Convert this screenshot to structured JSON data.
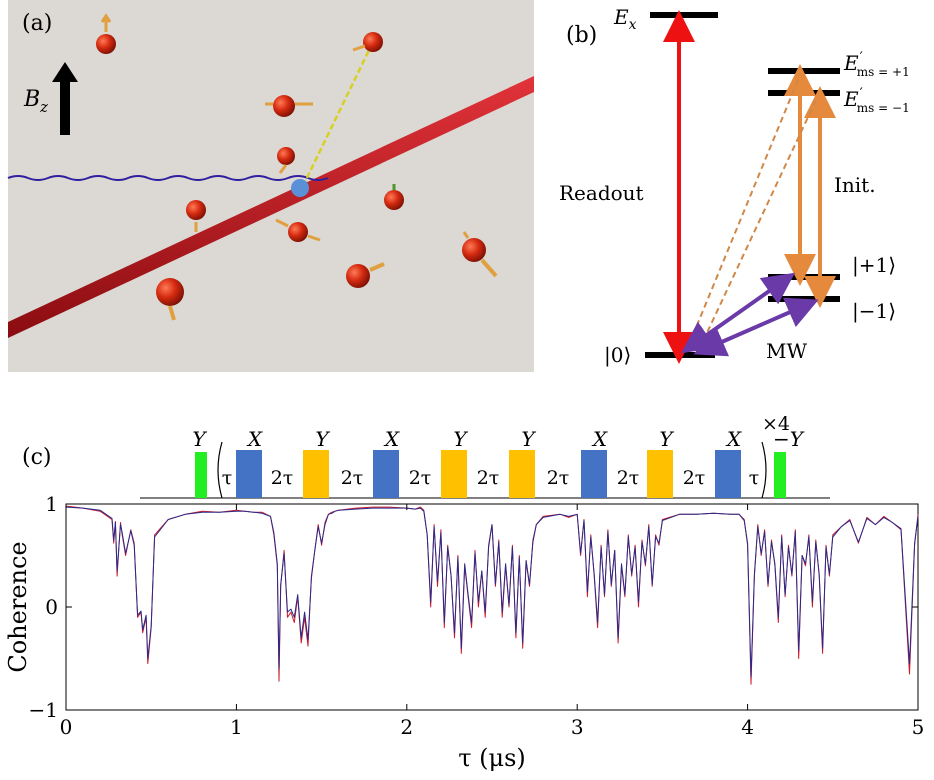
{
  "panel_a": {
    "label": "(a)",
    "field_label": "B",
    "field_sub": "z",
    "background": "#dcd8d4",
    "spin_color": "#d42a10",
    "arrow_color": "#e0a040",
    "wire_color": "#c8141c",
    "center_color": "#5a90d8",
    "link_blue": "#3020a0",
    "link_yellow": "#d8d020"
  },
  "panel_b": {
    "label": "(b)",
    "ex_label": "E",
    "ex_sub": "x",
    "ep1_label": "E",
    "ep1_sub": "ms = +1",
    "em1_label": "E",
    "em1_sub": "ms = −1",
    "readout": "Readout",
    "init": "Init.",
    "ket_p1": "|+1⟩",
    "ket_m1": "|−1⟩",
    "ket_0": "|0⟩",
    "mw": "MW",
    "colors": {
      "readout": "#ee1111",
      "init": "#e58a3c",
      "mw": "#6a3aa8"
    }
  },
  "panel_c": {
    "label": "(c)",
    "pulses": [
      "Y",
      "X",
      "Y",
      "X",
      "Y",
      "Y",
      "X",
      "Y",
      "X",
      "−Y"
    ],
    "spacers": [
      "τ",
      "2τ",
      "2τ",
      "2τ",
      "2τ",
      "2τ",
      "2τ",
      "2τ",
      "τ"
    ],
    "repeat": "×4",
    "colors": {
      "X": "#4472c4",
      "Y": "#ffc000",
      "edge": "#22ee22"
    }
  },
  "chart_data": {
    "type": "line",
    "xlabel": "τ (μs)",
    "ylabel": "Coherence",
    "xlim": [
      0,
      5
    ],
    "ylim": [
      -1,
      1
    ],
    "xticks": [
      "0",
      "1",
      "2",
      "3",
      "4",
      "5"
    ],
    "yticks": [
      "1",
      "0",
      "−1"
    ],
    "grid": false,
    "series_colors": [
      "#cc1a2a",
      "#2a2a8a"
    ],
    "x": [
      0,
      0.1,
      0.2,
      0.27,
      0.28,
      0.29,
      0.3,
      0.32,
      0.33,
      0.35,
      0.38,
      0.4,
      0.42,
      0.44,
      0.45,
      0.47,
      0.48,
      0.5,
      0.52,
      0.6,
      0.7,
      0.8,
      0.9,
      1.0,
      1.05,
      1.1,
      1.15,
      1.2,
      1.22,
      1.24,
      1.25,
      1.26,
      1.28,
      1.3,
      1.32,
      1.34,
      1.36,
      1.38,
      1.4,
      1.42,
      1.44,
      1.46,
      1.48,
      1.5,
      1.52,
      1.54,
      1.56,
      1.58,
      1.6,
      1.7,
      1.8,
      1.9,
      2.0,
      2.05,
      2.08,
      2.1,
      2.12,
      2.14,
      2.16,
      2.18,
      2.2,
      2.22,
      2.24,
      2.26,
      2.28,
      2.3,
      2.32,
      2.34,
      2.36,
      2.38,
      2.4,
      2.42,
      2.44,
      2.46,
      2.48,
      2.5,
      2.52,
      2.54,
      2.56,
      2.58,
      2.6,
      2.62,
      2.64,
      2.66,
      2.68,
      2.7,
      2.72,
      2.74,
      2.76,
      2.8,
      2.9,
      2.95,
      3.0,
      3.02,
      3.04,
      3.06,
      3.08,
      3.1,
      3.12,
      3.14,
      3.16,
      3.18,
      3.2,
      3.22,
      3.24,
      3.26,
      3.28,
      3.3,
      3.32,
      3.34,
      3.36,
      3.38,
      3.4,
      3.42,
      3.44,
      3.46,
      3.48,
      3.5,
      3.6,
      3.7,
      3.8,
      3.9,
      3.95,
      3.98,
      4.0,
      4.02,
      4.04,
      4.06,
      4.08,
      4.1,
      4.12,
      4.14,
      4.16,
      4.18,
      4.2,
      4.22,
      4.24,
      4.26,
      4.28,
      4.3,
      4.32,
      4.34,
      4.36,
      4.38,
      4.4,
      4.42,
      4.44,
      4.46,
      4.48,
      4.5,
      4.55,
      4.6,
      4.65,
      4.7,
      4.75,
      4.8,
      4.85,
      4.9,
      4.95,
      4.98,
      5.0
    ],
    "series": [
      {
        "values": [
          0.98,
          0.96,
          0.93,
          0.85,
          0.62,
          0.83,
          0.3,
          0.82,
          0.7,
          0.5,
          0.75,
          0.62,
          -0.1,
          -0.05,
          -0.25,
          -0.1,
          -0.55,
          -0.2,
          0.7,
          0.85,
          0.9,
          0.93,
          0.92,
          0.94,
          0.93,
          0.92,
          0.92,
          0.88,
          0.7,
          0.4,
          -0.72,
          0.2,
          0.55,
          -0.1,
          -0.05,
          -0.15,
          0.1,
          -0.35,
          -0.1,
          -0.38,
          0.3,
          0.55,
          0.8,
          0.6,
          0.82,
          0.9,
          0.92,
          0.93,
          0.94,
          0.96,
          0.97,
          0.97,
          0.96,
          0.95,
          0.97,
          0.94,
          0.7,
          0.0,
          0.8,
          0.2,
          0.75,
          -0.2,
          0.6,
          0.3,
          -0.3,
          0.5,
          -0.45,
          0.4,
          0.1,
          -0.2,
          0.55,
          0.0,
          0.35,
          -0.1,
          0.6,
          0.8,
          0.2,
          0.65,
          -0.1,
          0.4,
          0.0,
          0.6,
          -0.3,
          0.5,
          -0.4,
          0.45,
          0.2,
          0.65,
          0.8,
          0.88,
          0.9,
          0.87,
          0.9,
          0.5,
          0.85,
          0.1,
          0.7,
          0.3,
          -0.2,
          0.6,
          0.1,
          0.75,
          0.2,
          0.55,
          -0.35,
          0.4,
          0.1,
          0.7,
          0.3,
          0.6,
          0.0,
          0.65,
          0.4,
          0.8,
          0.2,
          0.7,
          0.6,
          0.85,
          0.9,
          0.9,
          0.91,
          0.9,
          0.9,
          0.85,
          0.6,
          -0.75,
          0.3,
          0.8,
          0.5,
          0.75,
          0.2,
          0.65,
          0.4,
          -0.15,
          0.7,
          0.1,
          0.6,
          0.3,
          0.75,
          -0.5,
          0.5,
          0.4,
          0.7,
          0.0,
          0.65,
          0.3,
          -0.45,
          0.6,
          0.3,
          0.7,
          0.78,
          0.85,
          0.62,
          0.87,
          0.8,
          0.88,
          0.82,
          0.75,
          -0.65,
          0.6,
          0.9
        ]
      },
      {
        "values": [
          0.97,
          0.96,
          0.94,
          0.86,
          0.65,
          0.82,
          0.35,
          0.8,
          0.72,
          0.52,
          0.74,
          0.6,
          -0.08,
          -0.04,
          -0.22,
          -0.08,
          -0.5,
          -0.18,
          0.68,
          0.85,
          0.9,
          0.92,
          0.92,
          0.93,
          0.93,
          0.92,
          0.91,
          0.88,
          0.72,
          0.42,
          -0.6,
          0.22,
          0.52,
          -0.05,
          -0.02,
          -0.1,
          0.12,
          -0.3,
          -0.05,
          -0.32,
          0.28,
          0.55,
          0.78,
          0.62,
          0.8,
          0.9,
          0.91,
          0.93,
          0.94,
          0.95,
          0.96,
          0.96,
          0.96,
          0.95,
          0.96,
          0.93,
          0.7,
          0.05,
          0.78,
          0.25,
          0.72,
          -0.15,
          0.58,
          0.3,
          -0.25,
          0.48,
          -0.4,
          0.42,
          0.12,
          -0.15,
          0.52,
          0.05,
          0.35,
          -0.05,
          0.58,
          0.8,
          0.22,
          0.63,
          -0.05,
          0.42,
          0.02,
          0.58,
          -0.25,
          0.48,
          -0.35,
          0.45,
          0.22,
          0.63,
          0.8,
          0.87,
          0.9,
          0.88,
          0.9,
          0.52,
          0.84,
          0.15,
          0.68,
          0.32,
          -0.15,
          0.58,
          0.12,
          0.73,
          0.22,
          0.55,
          -0.3,
          0.42,
          0.12,
          0.68,
          0.32,
          0.58,
          0.05,
          0.63,
          0.42,
          0.78,
          0.22,
          0.68,
          0.62,
          0.84,
          0.9,
          0.9,
          0.91,
          0.9,
          0.9,
          0.84,
          0.62,
          -0.68,
          0.32,
          0.78,
          0.52,
          0.73,
          0.22,
          0.63,
          0.42,
          -0.1,
          0.68,
          0.12,
          0.58,
          0.32,
          0.73,
          -0.42,
          0.5,
          0.42,
          0.68,
          0.05,
          0.63,
          0.32,
          -0.4,
          0.58,
          0.32,
          0.68,
          0.78,
          0.84,
          0.63,
          0.86,
          0.8,
          0.87,
          0.82,
          0.76,
          -0.55,
          0.62,
          0.88
        ]
      }
    ]
  }
}
